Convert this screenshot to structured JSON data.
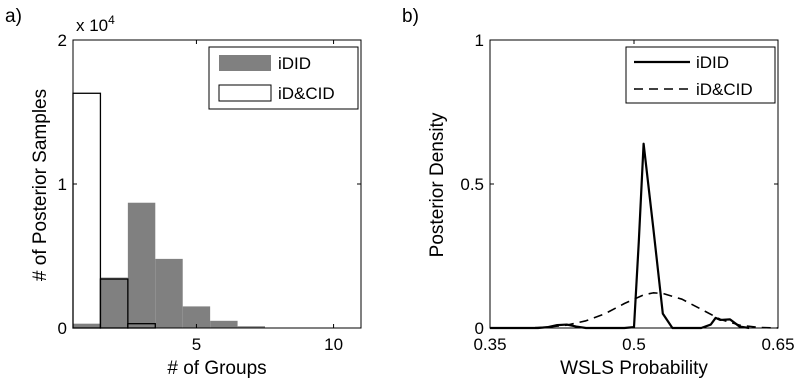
{
  "chart_data": [
    {
      "panel_label": "a)",
      "type": "bar",
      "xlabel": "# of Groups",
      "ylabel": "# of Posterior Samples",
      "xlim": [
        0.5,
        11
      ],
      "ylim": [
        0,
        20000
      ],
      "xticks": [
        5,
        10
      ],
      "yticks": [
        0,
        10000,
        20000
      ],
      "ytick_labels": [
        "0",
        "1",
        "2"
      ],
      "y_multiplier": "x 10",
      "y_multiplier_exp": "4",
      "grid": false,
      "legend_position": "top-right",
      "x": [
        1,
        2,
        3,
        4,
        5,
        6,
        7,
        8,
        9,
        10
      ],
      "series": [
        {
          "name": "iDID",
          "style": "filled",
          "color": "#808080",
          "values": [
            300,
            3500,
            8700,
            4800,
            1500,
            500,
            120,
            30,
            5,
            0
          ]
        },
        {
          "name": "iD&CID",
          "style": "outline",
          "color": "#000000",
          "values": [
            16300,
            3400,
            300,
            0,
            0,
            0,
            0,
            0,
            0,
            0
          ]
        }
      ]
    },
    {
      "panel_label": "b)",
      "type": "line",
      "xlabel": "WSLS Probability",
      "ylabel": "Posterior Density",
      "xlim": [
        0.35,
        0.65
      ],
      "ylim": [
        0,
        1
      ],
      "xticks": [
        0.35,
        0.5,
        0.65
      ],
      "xtick_labels": [
        "0.35",
        "0.5",
        "0.65"
      ],
      "yticks": [
        0,
        0.5,
        1
      ],
      "ytick_labels": [
        "0",
        "0.5",
        "1"
      ],
      "grid": false,
      "legend_position": "top-right",
      "series": [
        {
          "name": "iDID",
          "style": "solid",
          "color": "#000000",
          "x": [
            0.35,
            0.4,
            0.41,
            0.42,
            0.43,
            0.44,
            0.45,
            0.46,
            0.47,
            0.48,
            0.49,
            0.5,
            0.505,
            0.51,
            0.52,
            0.53,
            0.54,
            0.55,
            0.56,
            0.57,
            0.58,
            0.585,
            0.59,
            0.6,
            0.61,
            0.62
          ],
          "y": [
            0,
            0,
            0.003,
            0.01,
            0.012,
            0.005,
            0,
            0,
            0,
            0,
            0,
            0.003,
            0.3,
            0.64,
            0.35,
            0.05,
            0,
            0,
            0,
            0,
            0.012,
            0.035,
            0.028,
            0.03,
            0.005,
            0
          ]
        },
        {
          "name": "iD&CID",
          "style": "dashed",
          "color": "#000000",
          "x": [
            0.35,
            0.39,
            0.41,
            0.43,
            0.45,
            0.47,
            0.49,
            0.51,
            0.52,
            0.53,
            0.55,
            0.57,
            0.59,
            0.61,
            0.63,
            0.65
          ],
          "y": [
            0,
            0,
            0.003,
            0.01,
            0.025,
            0.05,
            0.085,
            0.115,
            0.122,
            0.12,
            0.1,
            0.065,
            0.03,
            0.01,
            0.002,
            0
          ]
        }
      ]
    }
  ]
}
